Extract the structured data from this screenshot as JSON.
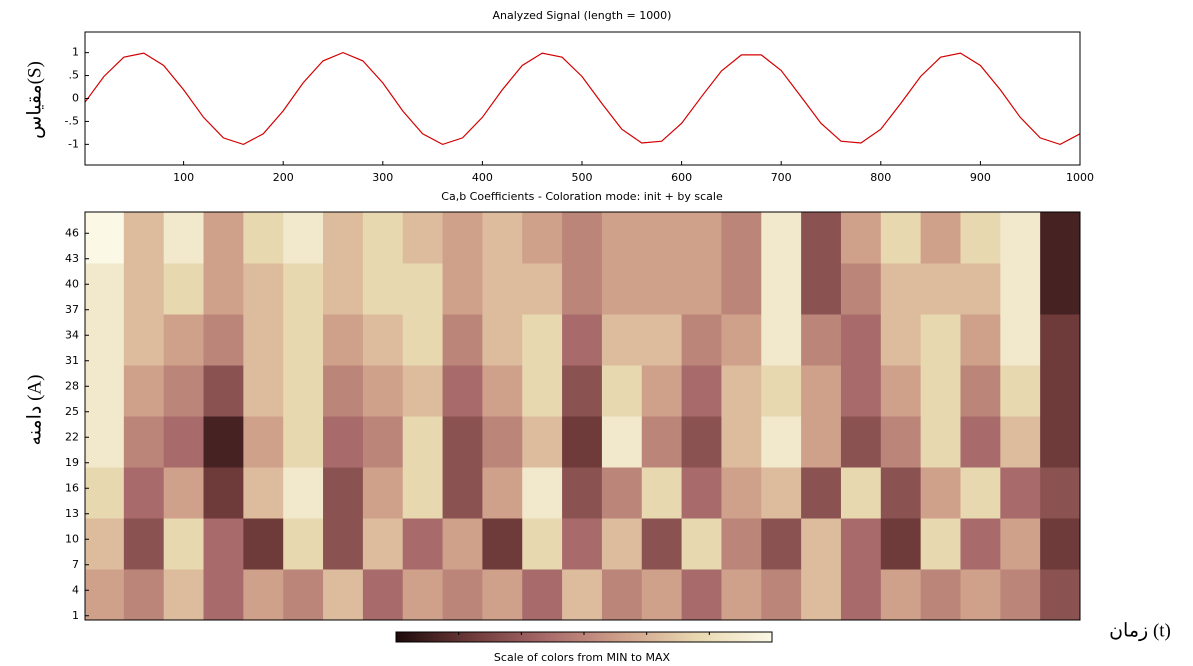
{
  "chart_data": [
    {
      "type": "line",
      "title": "Analyzed Signal  (length = 1000)",
      "ylabel": "مقیاس(S)",
      "x": [
        1,
        20,
        40,
        60,
        80,
        100,
        120,
        140,
        160,
        180,
        200,
        220,
        240,
        260,
        280,
        300,
        320,
        340,
        360,
        380,
        400,
        420,
        440,
        460,
        480,
        500,
        520,
        540,
        560,
        580,
        600,
        620,
        640,
        660,
        680,
        700,
        720,
        740,
        760,
        780,
        800,
        820,
        840,
        860,
        880,
        900,
        920,
        940,
        960,
        980,
        1000
      ],
      "values": [
        -0.08,
        0.48,
        0.9,
        0.99,
        0.72,
        0.19,
        -0.41,
        -0.86,
        -1.0,
        -0.77,
        -0.27,
        0.34,
        0.82,
        1.0,
        0.82,
        0.34,
        -0.27,
        -0.77,
        -1.0,
        -0.86,
        -0.41,
        0.19,
        0.72,
        0.99,
        0.9,
        0.48,
        -0.11,
        -0.67,
        -0.97,
        -0.93,
        -0.54,
        0.04,
        0.6,
        0.95,
        0.95,
        0.61,
        0.04,
        -0.54,
        -0.93,
        -0.97,
        -0.67,
        -0.11,
        0.48,
        0.9,
        0.99,
        0.72,
        0.19,
        -0.41,
        -0.86,
        -1.0,
        -0.77
      ],
      "color": "#d40000",
      "xlim": [
        1,
        1000
      ],
      "xticks": [
        100,
        200,
        300,
        400,
        500,
        600,
        700,
        800,
        900,
        1000
      ],
      "ylim": [
        -1.45,
        1.45
      ],
      "yticks": [
        -1,
        {
          "value": -0.5,
          "label": "-.5"
        },
        0,
        {
          "value": 0.5,
          "label": ".5"
        },
        1
      ]
    },
    {
      "type": "heatmap",
      "title": "Ca,b Coefficients - Coloration mode: init + by scale",
      "ylabel": "دامنه (A)",
      "xlabel": "زمان (t)",
      "colorbar_label": "Scale of colors from MIN to MAX",
      "colormap": [
        "#1e0a0a",
        "#6e3a3a",
        "#a86a6a",
        "#cfa08a",
        "#e8d8b0",
        "#fbf8e6"
      ],
      "xlim": [
        1,
        1000
      ],
      "ylim": [
        0.5,
        48.5
      ],
      "xbins": [
        1,
        40,
        80,
        120,
        160,
        200,
        240,
        280,
        320,
        360,
        400,
        440,
        480,
        520,
        560,
        600,
        640,
        680,
        720,
        760,
        800,
        840,
        880,
        920,
        960,
        1000
      ],
      "ybins": [
        0.5,
        6.5,
        12.5,
        18.5,
        24.5,
        30.5,
        36.5,
        42.5,
        48.5
      ],
      "yticks": [
        1,
        4,
        7,
        10,
        13,
        16,
        19,
        22,
        25,
        28,
        31,
        34,
        37,
        40,
        43,
        46
      ],
      "z": [
        [
          0.6,
          0.5,
          0.7,
          0.4,
          0.6,
          0.5,
          0.7,
          0.4,
          0.6,
          0.5,
          0.6,
          0.4,
          0.7,
          0.5,
          0.6,
          0.4,
          0.6,
          0.5,
          0.7,
          0.4,
          0.6,
          0.5,
          0.6,
          0.5,
          0.3
        ],
        [
          0.7,
          0.3,
          0.8,
          0.4,
          0.2,
          0.8,
          0.3,
          0.7,
          0.4,
          0.6,
          0.2,
          0.8,
          0.4,
          0.7,
          0.3,
          0.8,
          0.5,
          0.3,
          0.7,
          0.4,
          0.2,
          0.8,
          0.4,
          0.6,
          0.2
        ],
        [
          0.8,
          0.4,
          0.6,
          0.2,
          0.7,
          0.9,
          0.3,
          0.6,
          0.8,
          0.3,
          0.6,
          0.9,
          0.3,
          0.5,
          0.8,
          0.4,
          0.6,
          0.7,
          0.3,
          0.8,
          0.3,
          0.6,
          0.8,
          0.4,
          0.3
        ],
        [
          0.9,
          0.5,
          0.4,
          0.1,
          0.6,
          0.8,
          0.4,
          0.5,
          0.8,
          0.3,
          0.5,
          0.7,
          0.2,
          0.9,
          0.5,
          0.3,
          0.7,
          0.9,
          0.6,
          0.3,
          0.5,
          0.8,
          0.4,
          0.7,
          0.2
        ],
        [
          0.9,
          0.6,
          0.5,
          0.3,
          0.7,
          0.8,
          0.5,
          0.6,
          0.7,
          0.4,
          0.6,
          0.8,
          0.3,
          0.8,
          0.6,
          0.4,
          0.7,
          0.8,
          0.6,
          0.4,
          0.6,
          0.8,
          0.5,
          0.8,
          0.2
        ],
        [
          0.9,
          0.7,
          0.6,
          0.5,
          0.7,
          0.8,
          0.6,
          0.7,
          0.8,
          0.5,
          0.7,
          0.8,
          0.4,
          0.7,
          0.7,
          0.5,
          0.6,
          0.9,
          0.5,
          0.4,
          0.7,
          0.8,
          0.6,
          0.9,
          0.2
        ],
        [
          0.9,
          0.7,
          0.8,
          0.6,
          0.7,
          0.8,
          0.7,
          0.8,
          0.8,
          0.6,
          0.7,
          0.7,
          0.5,
          0.6,
          0.6,
          0.6,
          0.5,
          0.9,
          0.3,
          0.5,
          0.7,
          0.7,
          0.7,
          0.9,
          0.1
        ],
        [
          1.0,
          0.7,
          0.9,
          0.6,
          0.8,
          0.9,
          0.7,
          0.8,
          0.7,
          0.6,
          0.7,
          0.6,
          0.5,
          0.6,
          0.6,
          0.6,
          0.5,
          0.9,
          0.3,
          0.6,
          0.8,
          0.6,
          0.8,
          0.9,
          0.1
        ]
      ]
    }
  ]
}
